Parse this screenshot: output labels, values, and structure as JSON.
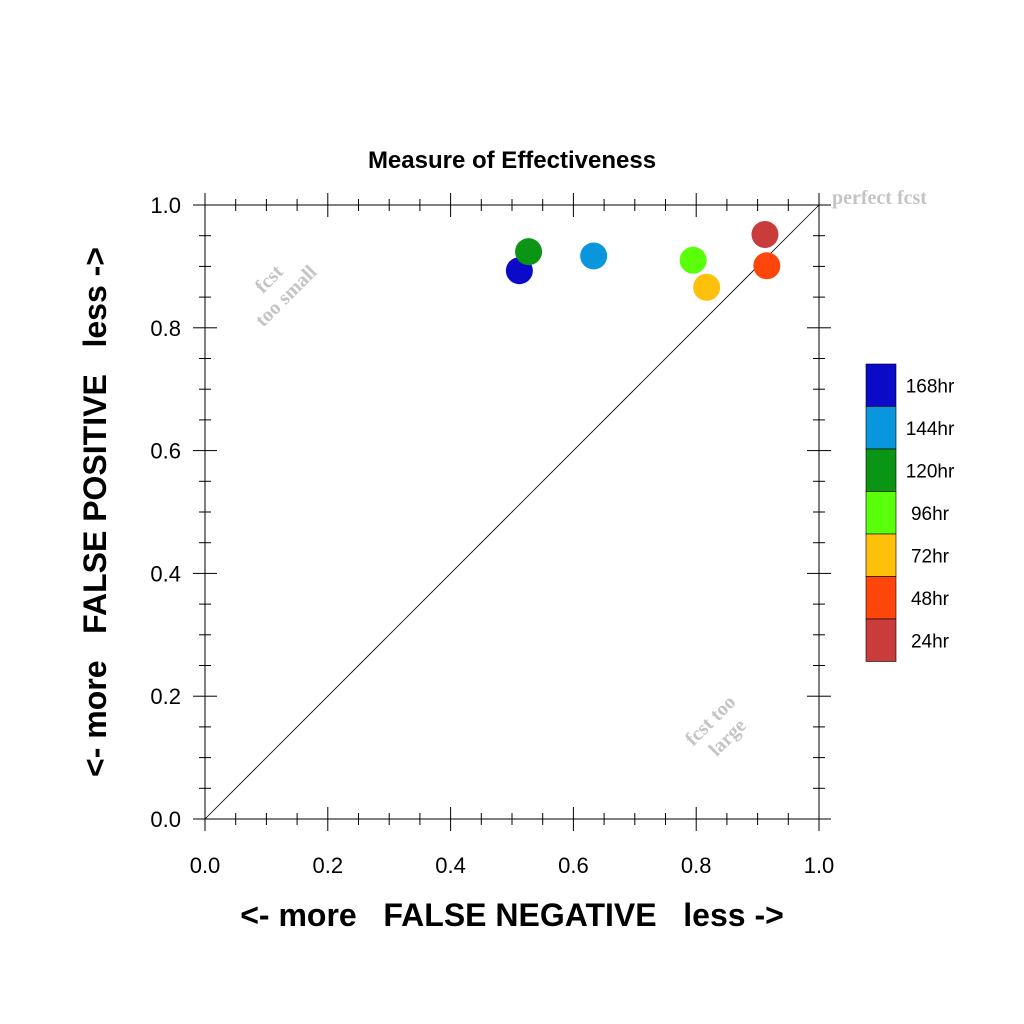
{
  "chart_data": {
    "type": "scatter",
    "title": "Measure of Effectiveness",
    "xlabel": "<- more   FALSE NEGATIVE   less ->",
    "ylabel": "<- more   FALSE POSITIVE   less ->",
    "xlim": [
      0.0,
      1.0
    ],
    "ylim": [
      0.0,
      1.0
    ],
    "x_ticks": [
      "0.0",
      "0.2",
      "0.4",
      "0.6",
      "0.8",
      "1.0"
    ],
    "y_ticks": [
      "0.0",
      "0.2",
      "0.4",
      "0.6",
      "0.8",
      "1.0"
    ],
    "grid": false,
    "diagonal_line": true,
    "annotations": {
      "perfect": "perfect fcst",
      "too_small_1": "fcst",
      "too_small_2": "too small",
      "too_large_1": "fcst too",
      "too_large_2": "large"
    },
    "legend_position": "right",
    "series": [
      {
        "name": "168hr",
        "color": "#0a0ac8",
        "x": 0.512,
        "y": 0.893
      },
      {
        "name": "144hr",
        "color": "#0a96dc",
        "x": 0.633,
        "y": 0.917
      },
      {
        "name": "120hr",
        "color": "#0a9614",
        "x": 0.527,
        "y": 0.924
      },
      {
        "name": "96hr",
        "color": "#5aff0a",
        "x": 0.795,
        "y": 0.91
      },
      {
        "name": "72hr",
        "color": "#ffc00a",
        "x": 0.817,
        "y": 0.866
      },
      {
        "name": "48hr",
        "color": "#ff460a",
        "x": 0.915,
        "y": 0.901
      },
      {
        "name": "24hr",
        "color": "#c83c3c",
        "x": 0.912,
        "y": 0.952
      }
    ]
  }
}
